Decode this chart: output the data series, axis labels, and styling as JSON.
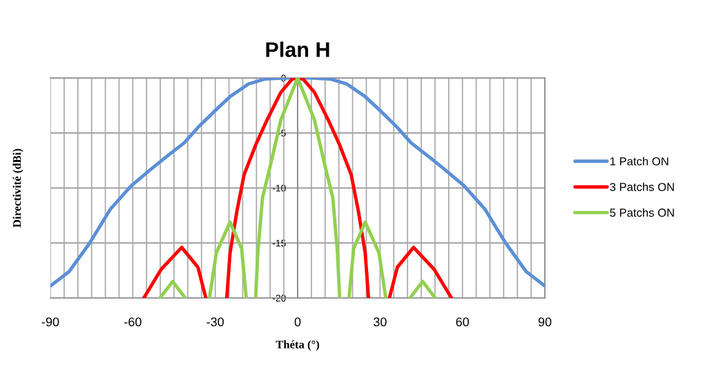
{
  "chart_data": {
    "type": "line",
    "title": "Plan H",
    "xlabel": "Théta (°)",
    "ylabel": "Directivité (dBi)",
    "xlim": [
      -90,
      90
    ],
    "xticks": [
      -90,
      -60,
      -30,
      0,
      30,
      60,
      90
    ],
    "ylim": [
      -20,
      0
    ],
    "yticks": [
      0,
      -5,
      -10,
      -15,
      -20
    ],
    "grid": true,
    "legend": "right",
    "marker": "none",
    "line_style": "solid",
    "series": [
      {
        "name": "1 Patch ON",
        "color": "#5b8fd6",
        "x": [
          -90,
          -83.2,
          -75.7,
          -68.1,
          -60.6,
          -53.9,
          -48,
          -41.3,
          -36.3,
          -30.4,
          -24.6,
          -17.9,
          -12,
          -5,
          0,
          5,
          12,
          17.9,
          24.6,
          30.4,
          36.3,
          41.3,
          48,
          53.9,
          60.6,
          68.1,
          75.7,
          83.2,
          90
        ],
        "values": [
          -18.9,
          -17.6,
          -15,
          -11.9,
          -9.8,
          -8.4,
          -7.2,
          -5.9,
          -4.5,
          -3.05,
          -1.7,
          -0.55,
          -0.1,
          0,
          0,
          0,
          -0.1,
          -0.55,
          -1.7,
          -3.05,
          -4.5,
          -5.9,
          -7.2,
          -8.4,
          -9.8,
          -11.9,
          -15,
          -17.6,
          -18.9
        ]
      },
      {
        "name": "3 Patchs ON",
        "color": "#ff0000",
        "x": [
          -56,
          -49.7,
          -42.2,
          -36.3,
          -33.4,
          -30,
          -25.8,
          -24.6,
          -22.1,
          -19.5,
          -15.3,
          -11.1,
          -6.1,
          -2,
          0,
          2,
          6.1,
          11.1,
          15.3,
          19.5,
          22.1,
          24.6,
          25.8,
          30,
          33.4,
          36.3,
          42.2,
          49.7,
          56
        ],
        "values": [
          -20,
          -17.4,
          -15.4,
          -17.2,
          -20,
          null,
          -20,
          -15.9,
          -12.1,
          -8.8,
          -6.1,
          -3.8,
          -1.3,
          -0.1,
          0,
          -0.1,
          -1.3,
          -3.8,
          -6.1,
          -8.8,
          -12.1,
          -15.9,
          -20,
          null,
          -20,
          -17.2,
          -15.4,
          -17.4,
          -20
        ]
      },
      {
        "name": "5 Patchs ON",
        "color": "#92d050",
        "x": [
          -50.1,
          -45.5,
          -40.9,
          -36,
          -32.1,
          -29.6,
          -24.6,
          -20.4,
          -18.7,
          -17,
          -15.3,
          -14.5,
          -12.8,
          -9.5,
          -6.1,
          0,
          6.1,
          9.5,
          12.8,
          14.5,
          15.3,
          17,
          18.7,
          20.4,
          24.6,
          29.6,
          32.1,
          36,
          40.9,
          45.5,
          50.1
        ],
        "values": [
          -20,
          -18.5,
          -20,
          null,
          -20,
          -15.9,
          -13.1,
          -15.5,
          -20,
          null,
          -20,
          -15.9,
          -10.9,
          -7.5,
          -3.8,
          0,
          -3.8,
          -7.5,
          -10.9,
          -15.9,
          -20,
          null,
          -20,
          -15.5,
          -13.1,
          -15.9,
          -20,
          null,
          -20,
          -18.5,
          -20
        ]
      }
    ]
  }
}
